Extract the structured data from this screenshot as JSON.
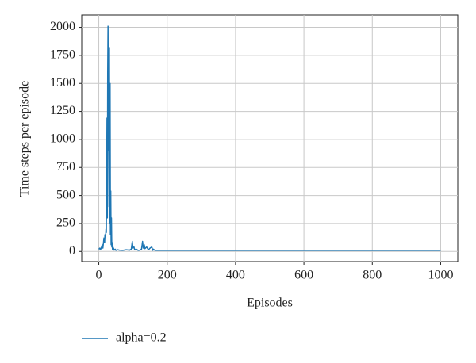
{
  "chart_data": {
    "type": "line",
    "x_label": "Episodes",
    "y_label": "Time steps per episode",
    "x": [
      0,
      3,
      5,
      8,
      10,
      12,
      14,
      15,
      17,
      18,
      20,
      21,
      22,
      24,
      25,
      26,
      27,
      28,
      29,
      30,
      31,
      32,
      33,
      34,
      35,
      36,
      37,
      38,
      39,
      40,
      41,
      42,
      43,
      45,
      48,
      50,
      55,
      60,
      70,
      80,
      90,
      95,
      98,
      100,
      103,
      105,
      110,
      115,
      120,
      125,
      128,
      130,
      133,
      135,
      140,
      145,
      150,
      155,
      158,
      160,
      163,
      165,
      170,
      180,
      200,
      300,
      500,
      1000
    ],
    "series": [
      {
        "name": "alpha=0.2",
        "color": "#1f77b4",
        "values": [
          20,
          30,
          15,
          40,
          60,
          30,
          90,
          120,
          80,
          150,
          130,
          200,
          170,
          1190,
          300,
          1600,
          2010,
          900,
          1200,
          400,
          1820,
          250,
          1500,
          150,
          540,
          60,
          300,
          40,
          80,
          20,
          60,
          15,
          30,
          12,
          20,
          10,
          15,
          12,
          10,
          15,
          12,
          20,
          90,
          30,
          40,
          15,
          20,
          10,
          12,
          20,
          90,
          30,
          60,
          25,
          40,
          15,
          30,
          40,
          10,
          20,
          12,
          10,
          10,
          10,
          10,
          10,
          10,
          10
        ]
      }
    ],
    "xlim": [
      -50,
      1050
    ],
    "ylim": [
      -90,
      2110
    ],
    "xticks": [
      0,
      200,
      400,
      600,
      800,
      1000
    ],
    "yticks": [
      0,
      250,
      500,
      750,
      1000,
      1250,
      1500,
      1750,
      2000
    ],
    "grid": true
  }
}
